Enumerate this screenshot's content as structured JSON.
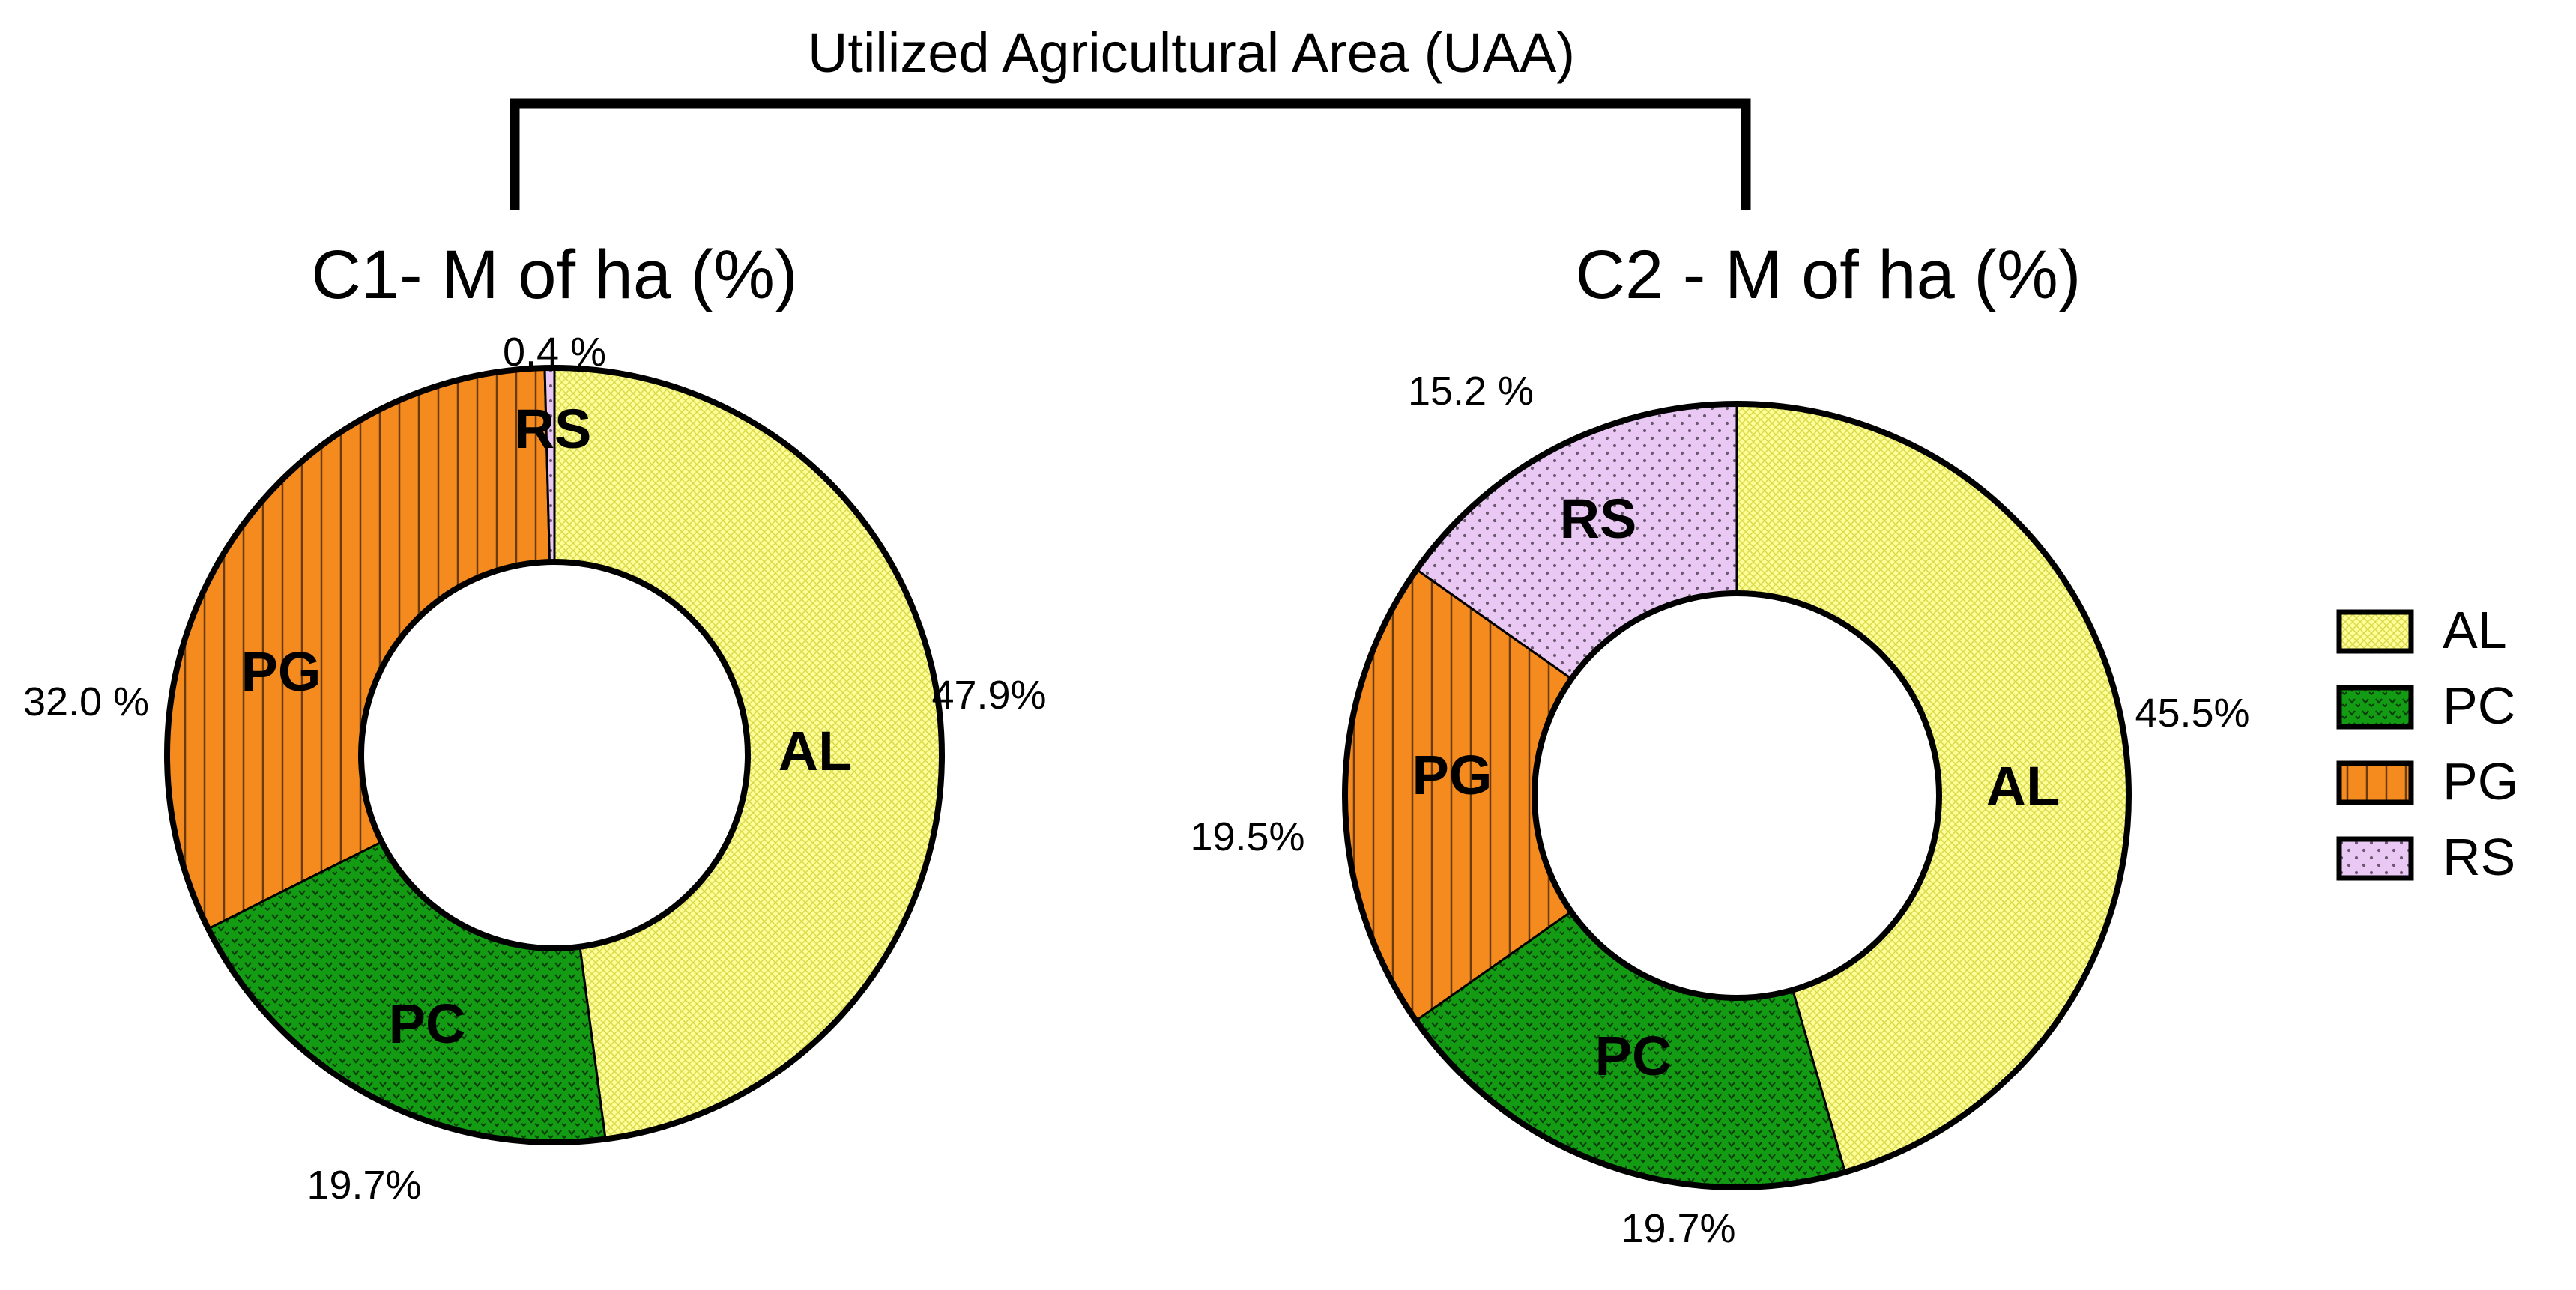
{
  "figure": {
    "super_title": "Utilized Agricultural Area (UAA)"
  },
  "colors": {
    "AL": "#ffff99",
    "PC": "#139b13",
    "PG": "#f58a1f",
    "RS": "#e9c8f3",
    "outline": "#000000"
  },
  "legend": [
    {
      "key": "AL",
      "label": "AL"
    },
    {
      "key": "PC",
      "label": "PC"
    },
    {
      "key": "PG",
      "label": "PG"
    },
    {
      "key": "RS",
      "label": "RS"
    }
  ],
  "chart_data": [
    {
      "type": "pie",
      "title": "C1- M of ha (%)",
      "categories": [
        "AL",
        "PC",
        "PG",
        "RS"
      ],
      "values": [
        47.9,
        19.7,
        32.0,
        0.4
      ],
      "value_labels": [
        "47.9%",
        "19.7%",
        "32.0 %",
        "0.4 %"
      ],
      "segment_labels": [
        "AL",
        "PC",
        "PG",
        "RS"
      ],
      "donut": true
    },
    {
      "type": "pie",
      "title": "C2 - M of ha (%)",
      "categories": [
        "AL",
        "PC",
        "PG",
        "RS"
      ],
      "values": [
        45.5,
        19.7,
        19.5,
        15.2
      ],
      "value_labels": [
        "45.5%",
        "19.7%",
        "19.5%",
        "15.2 %"
      ],
      "segment_labels": [
        "AL",
        "PC",
        "PG",
        "RS"
      ],
      "donut": true
    }
  ]
}
